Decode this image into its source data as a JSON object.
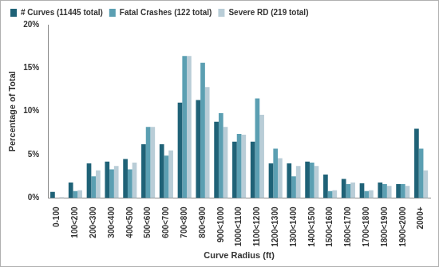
{
  "chart_data": {
    "type": "bar",
    "x_label": "Curve Radius (ft)",
    "y_label": "Percentage of Total",
    "categories": [
      "0-100",
      "100<200",
      "200<300",
      "300<400",
      "400<500",
      "500<600",
      "600<700",
      "700<800",
      "800<900",
      "900<1000",
      "1000<1100",
      "1100<1200",
      "1200<1300",
      "1300<1400",
      "1400<1500",
      "1500<1600",
      "1600<1700",
      "1700<1800",
      "1800<1900",
      "1900<2000",
      "2000+"
    ],
    "series": [
      {
        "name": "# Curves (11445 total)",
        "color": "#1f6277",
        "values": [
          0.7,
          1.8,
          4.0,
          4.2,
          4.5,
          6.2,
          6.2,
          11.0,
          11.3,
          8.8,
          6.5,
          6.5,
          4.0,
          4.0,
          4.2,
          2.7,
          2.2,
          1.7,
          1.8,
          1.6,
          8.0
        ]
      },
      {
        "name": "Fatal Crashes (122 total)",
        "color": "#5b9fb2",
        "values": [
          0,
          0.8,
          2.5,
          3.3,
          3.3,
          8.2,
          4.9,
          16.4,
          15.6,
          9.8,
          7.4,
          11.5,
          5.7,
          2.5,
          4.1,
          0.8,
          1.6,
          0.8,
          1.6,
          1.6,
          5.7
        ]
      },
      {
        "name": "Severe RD (219 total)",
        "color": "#b9cdd7",
        "values": [
          0.1,
          0.9,
          3.2,
          3.7,
          4.1,
          8.2,
          5.5,
          16.4,
          12.8,
          8.2,
          7.3,
          9.6,
          4.6,
          3.7,
          3.7,
          0.9,
          1.8,
          0.9,
          1.4,
          1.4,
          3.2
        ]
      }
    ],
    "ylim": [
      0,
      20
    ],
    "yticks": [
      {
        "value": 0,
        "label": "0%"
      },
      {
        "value": 5,
        "label": "5%"
      },
      {
        "value": 10,
        "label": "10%"
      },
      {
        "value": 15,
        "label": "15%"
      },
      {
        "value": 20,
        "label": "20%"
      }
    ],
    "grid": false,
    "legend": "top-left"
  }
}
